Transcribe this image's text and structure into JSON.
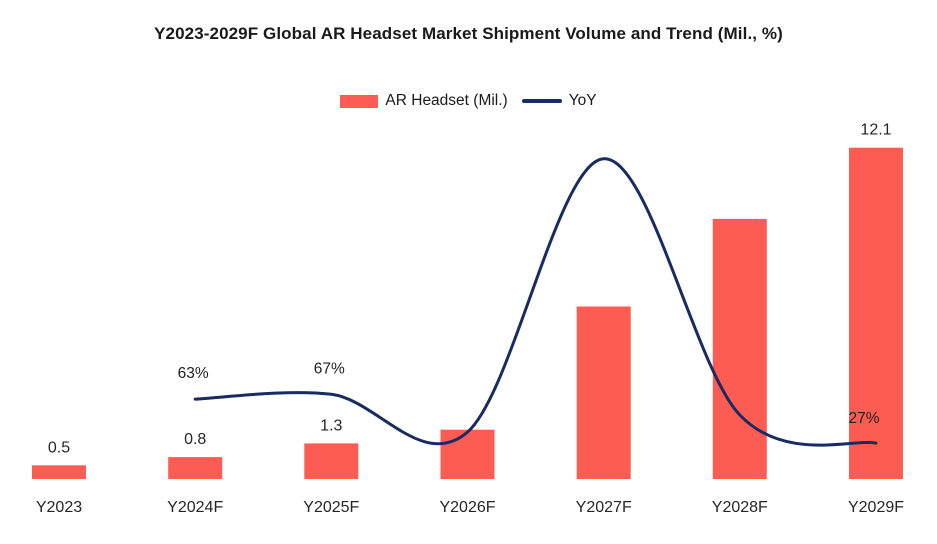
{
  "chart": {
    "title": "Y2023-2029F Global AR Headset Market Shipment Volume and Trend (Mil., %)",
    "legend": {
      "bars": "AR Headset (Mil.)",
      "line": "YoY"
    },
    "colors": {
      "bar": "#FC5C52",
      "line": "#182B62",
      "label_text": "#262626",
      "title_text": "#1A1A1A"
    }
  },
  "chart_data": {
    "type": "bar",
    "subtype": "combo: bars with overlaid smooth line (dual implicit axes, no gridlines)",
    "title": "Y2023-2029F Global AR Headset Market Shipment Volume and Trend (Mil., %)",
    "categories": [
      "Y2023",
      "Y2024F",
      "Y2025F",
      "Y2026F",
      "Y2027F",
      "Y2028F",
      "Y2029F"
    ],
    "series": [
      {
        "name": "AR Headset (Mil.)",
        "type": "bar",
        "unit": "Mil.",
        "values": [
          0.5,
          0.8,
          1.3,
          1.8,
          6.3,
          9.5,
          12.1
        ],
        "value_labels_shown": [
          "0.5",
          "0.8",
          "1.3",
          null,
          null,
          null,
          "12.1"
        ],
        "note": "Y2026F-Y2028F values estimated from bar heights; no data labels shown for them"
      },
      {
        "name": "YoY",
        "type": "line",
        "unit": "%",
        "values": [
          null,
          63,
          67,
          36,
          260,
          50,
          27
        ],
        "value_labels_shown": [
          null,
          "63%",
          "67%",
          null,
          null,
          null,
          "27%"
        ],
        "note": "Y2026F-Y2028F YoY estimated from line position; no labels shown for them"
      }
    ],
    "xlabel": "",
    "ylabel": "",
    "bar_axis_range": [
      0,
      13
    ],
    "yoy_axis_range_percent": [
      0,
      280
    ],
    "axes_visible": false,
    "gridlines": false,
    "legend_position": "top-center"
  }
}
